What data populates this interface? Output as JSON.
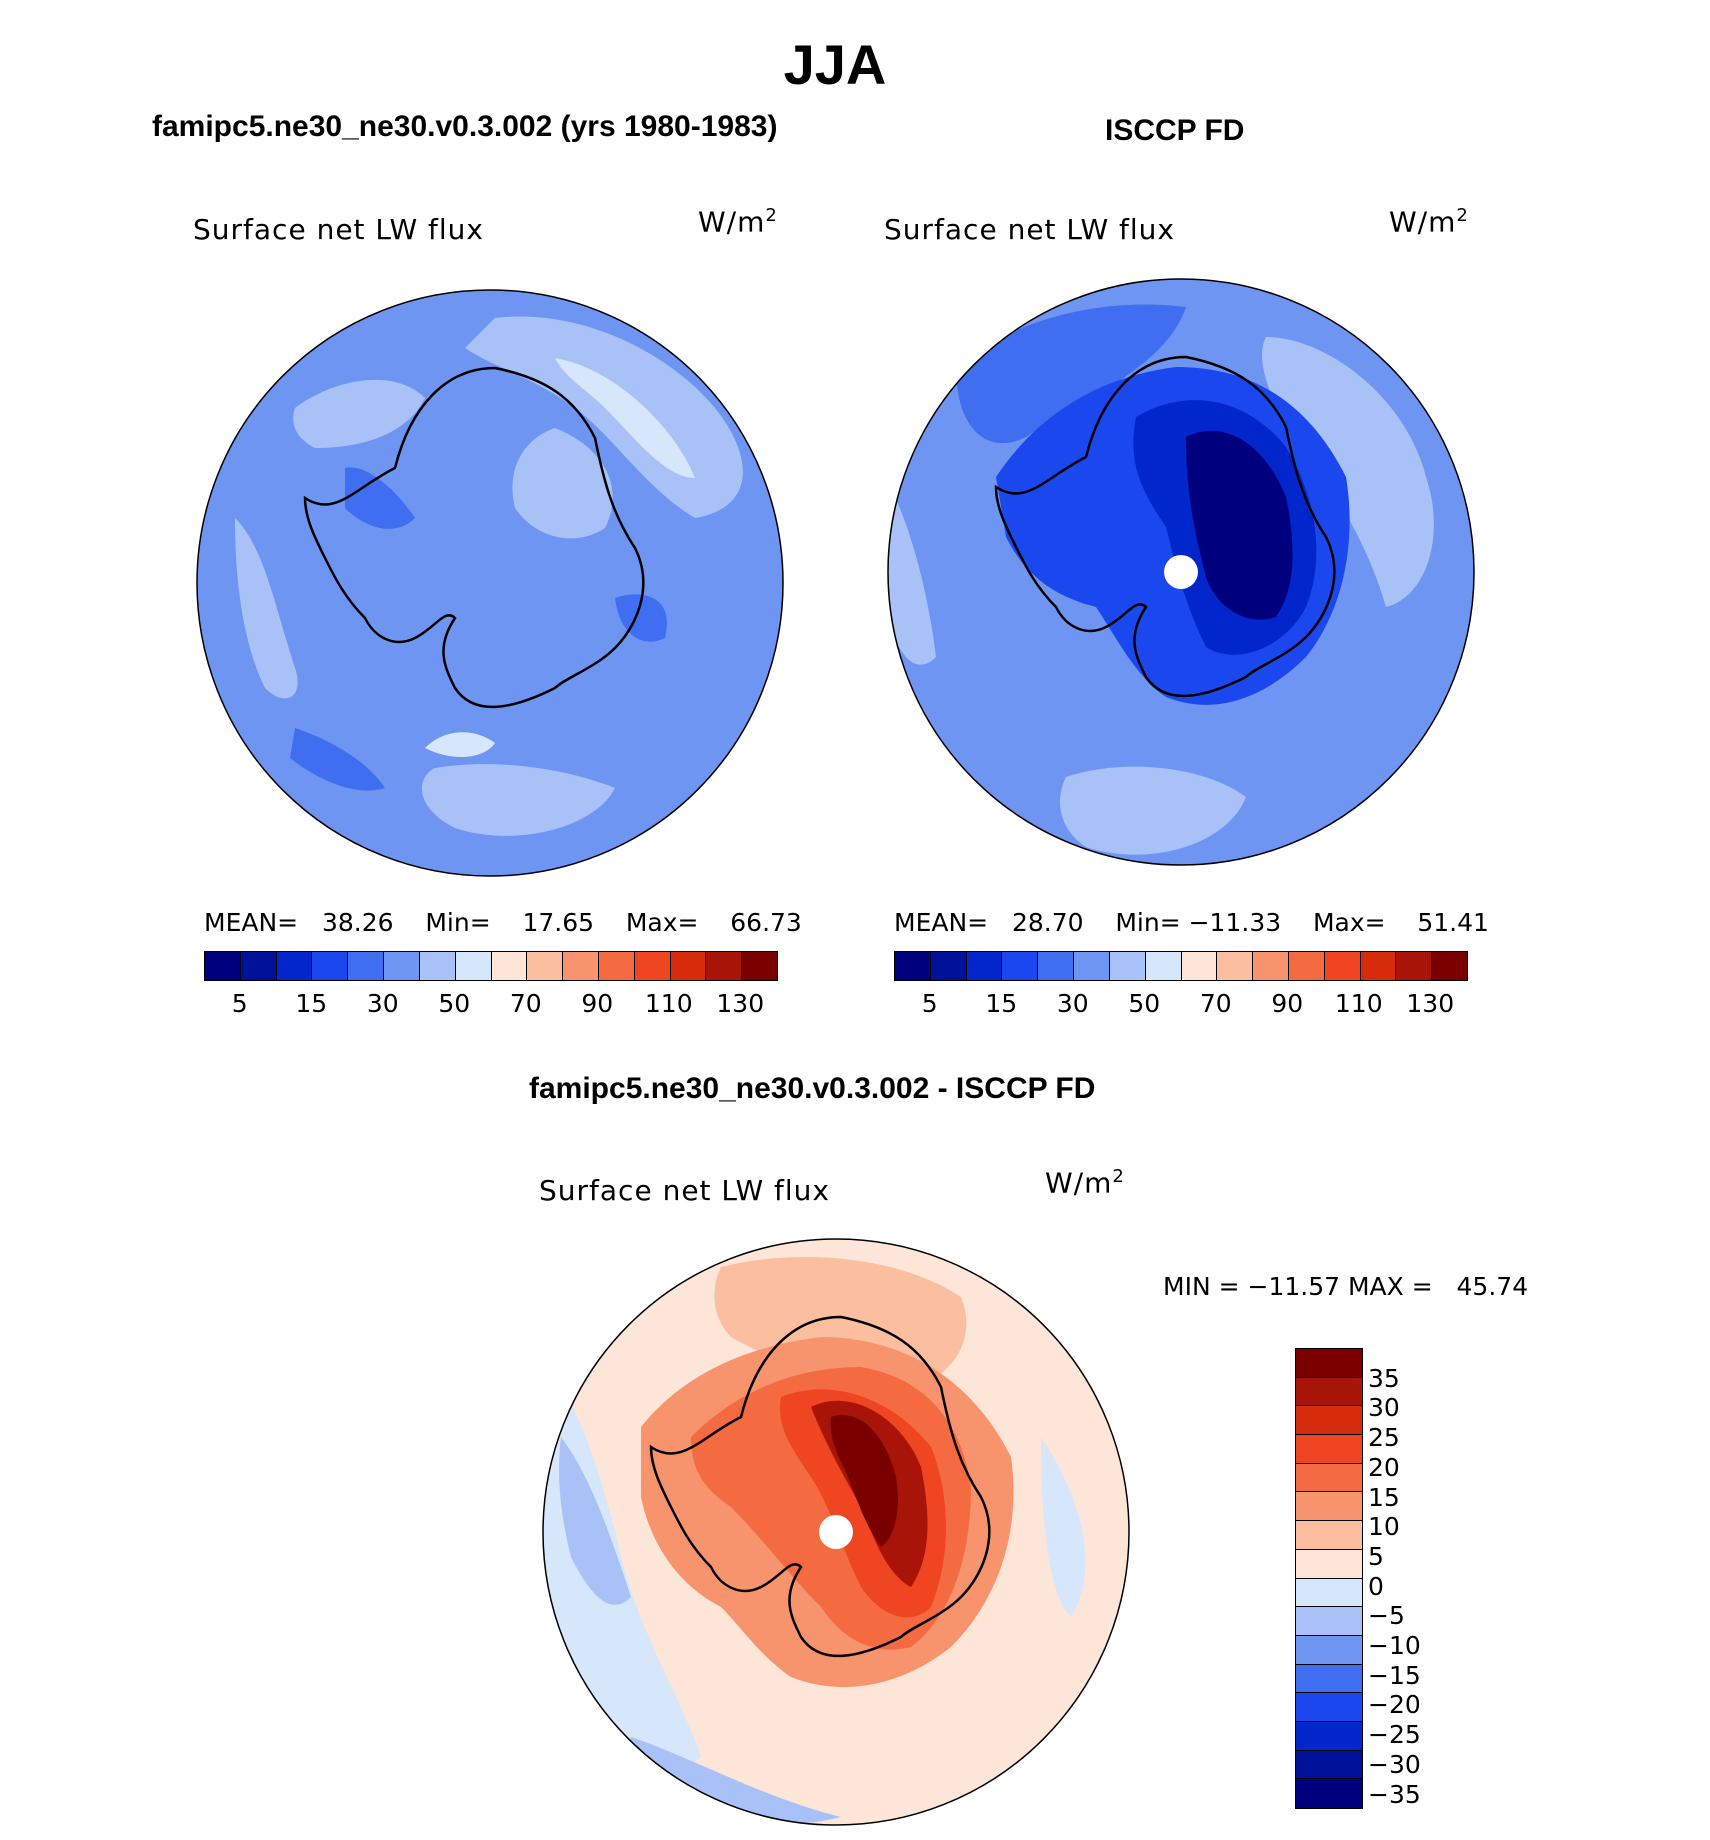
{
  "title": "JJA",
  "panels": [
    {
      "subtitle": "famipc5.ne30_ne30.v0.3.002 (yrs 1980-1983)",
      "variable": "Surface net LW flux",
      "units": "W/m",
      "units_sup": "2",
      "stats": {
        "mean_label": "MEAN=",
        "mean": "38.26",
        "min_label": "Min=",
        "min": "17.65",
        "max_label": "Max=",
        "max": "66.73"
      }
    },
    {
      "subtitle": "ISCCP FD",
      "variable": "Surface net LW flux",
      "units": "W/m",
      "units_sup": "2",
      "stats": {
        "mean_label": "MEAN=",
        "mean": "28.70",
        "min_label": "Min=",
        "min": "−11.33",
        "max_label": "Max=",
        "max": "51.41"
      }
    },
    {
      "subtitle": "famipc5.ne30_ne30.v0.3.002 - ISCCP FD",
      "variable": "Surface net LW flux",
      "units": "W/m",
      "units_sup": "2",
      "stats": {
        "min_label": "MIN =",
        "min": "−11.57",
        "max_label": "MAX =",
        "max": "45.74"
      }
    }
  ],
  "colorbar_abs": {
    "colors": [
      "#00007f",
      "#001199",
      "#0026cc",
      "#1b48ee",
      "#3f6ef0",
      "#6f95f3",
      "#a8c2f8",
      "#d6e6fb",
      "#fde6d7",
      "#fbbfa0",
      "#f8946d",
      "#f46a41",
      "#ef4520",
      "#d72c0c",
      "#a81408",
      "#7a0000"
    ],
    "tick_labels": [
      "5",
      "15",
      "30",
      "50",
      "70",
      "90",
      "110",
      "130"
    ]
  },
  "colorbar_diff": {
    "colors": [
      "#7a0000",
      "#a81408",
      "#d72c0c",
      "#ef4520",
      "#f46a41",
      "#f8946d",
      "#fbbfa0",
      "#fde6d7",
      "#d6e6fb",
      "#a8c2f8",
      "#6f95f3",
      "#3f6ef0",
      "#1b48ee",
      "#0026cc",
      "#001199",
      "#00007f"
    ],
    "tick_labels": [
      "35",
      "30",
      "25",
      "20",
      "15",
      "10",
      "5",
      "0",
      "−5",
      "−10",
      "−15",
      "−20",
      "−25",
      "−30",
      "−35"
    ]
  }
}
